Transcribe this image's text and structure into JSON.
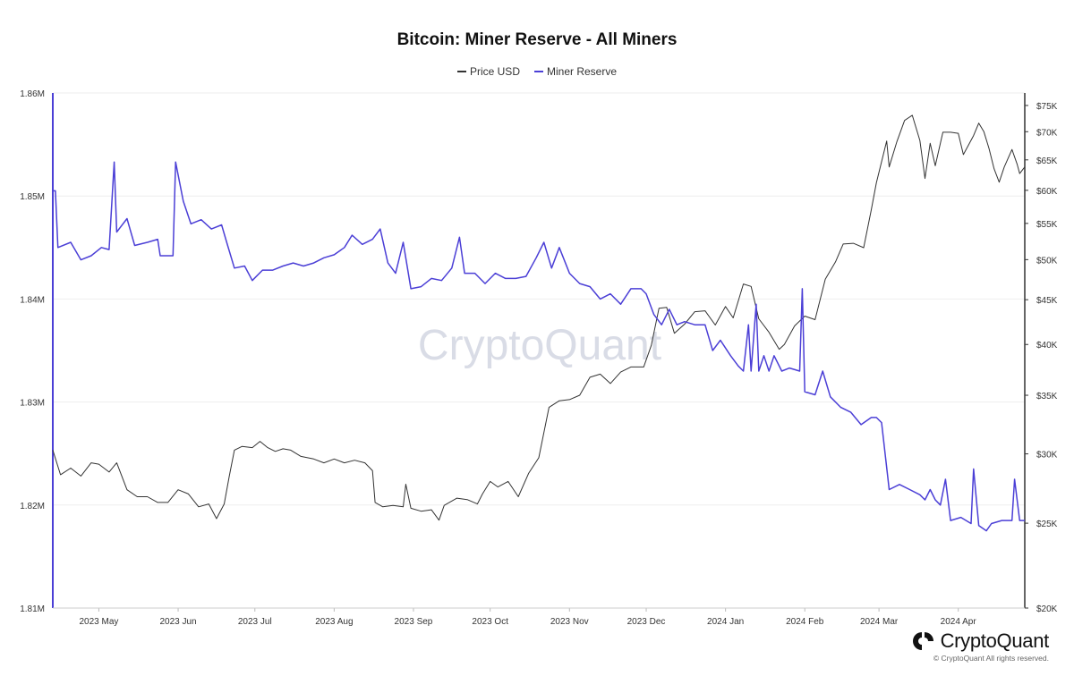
{
  "colors": {
    "price": "#333333",
    "reserve": "#4b3fd6",
    "grid": "#eeeeee"
  },
  "brand": {
    "name": "CryptoQuant",
    "copyright": "© CryptoQuant All rights reserved.",
    "watermark": "CryptoQuant"
  },
  "chart_data": {
    "type": "line",
    "title": "Bitcoin: Miner Reserve - All Miners",
    "legend": {
      "position": "top-center",
      "entries": [
        "Price USD",
        "Miner Reserve"
      ]
    },
    "grid": true,
    "x_start": "2023-04-13",
    "x_end": "2024-04-27",
    "x_ticks": [
      {
        "date": "2023-05-01",
        "label": "2023 May"
      },
      {
        "date": "2023-06-01",
        "label": "2023 Jun"
      },
      {
        "date": "2023-07-01",
        "label": "2023 Jul"
      },
      {
        "date": "2023-08-01",
        "label": "2023 Aug"
      },
      {
        "date": "2023-09-01",
        "label": "2023 Sep"
      },
      {
        "date": "2023-10-01",
        "label": "2023 Oct"
      },
      {
        "date": "2023-11-01",
        "label": "2023 Nov"
      },
      {
        "date": "2023-12-01",
        "label": "2023 Dec"
      },
      {
        "date": "2024-01-01",
        "label": "2024 Jan"
      },
      {
        "date": "2024-02-01",
        "label": "2024 Feb"
      },
      {
        "date": "2024-03-01",
        "label": "2024 Mar"
      },
      {
        "date": "2024-04-01",
        "label": "2024 Apr"
      }
    ],
    "y_left": {
      "range": [
        1.81,
        1.86
      ],
      "ticks": [
        {
          "value": 1.81,
          "label": "1.81M"
        },
        {
          "value": 1.82,
          "label": "1.82M"
        },
        {
          "value": 1.83,
          "label": "1.83M"
        },
        {
          "value": 1.84,
          "label": "1.84M"
        },
        {
          "value": 1.85,
          "label": "1.85M"
        },
        {
          "value": 1.86,
          "label": "1.86M"
        }
      ]
    },
    "y_right": {
      "scale": "log",
      "range": [
        20000,
        77500
      ],
      "ticks": [
        {
          "value": 20000,
          "label": "$20K"
        },
        {
          "value": 25000,
          "label": "$25K"
        },
        {
          "value": 30000,
          "label": "$30K"
        },
        {
          "value": 35000,
          "label": "$35K"
        },
        {
          "value": 40000,
          "label": "$40K"
        },
        {
          "value": 45000,
          "label": "$45K"
        },
        {
          "value": 50000,
          "label": "$50K"
        },
        {
          "value": 55000,
          "label": "$55K"
        },
        {
          "value": 60000,
          "label": "$60K"
        },
        {
          "value": 65000,
          "label": "$65K"
        },
        {
          "value": 70000,
          "label": "$70K"
        },
        {
          "value": 75000,
          "label": "$75K"
        }
      ]
    },
    "series": [
      {
        "name": "Price USD",
        "axis": "right",
        "points": [
          [
            "2023-04-13",
            30300
          ],
          [
            "2023-04-16",
            28400
          ],
          [
            "2023-04-20",
            28900
          ],
          [
            "2023-04-24",
            28300
          ],
          [
            "2023-04-28",
            29300
          ],
          [
            "2023-05-01",
            29200
          ],
          [
            "2023-05-05",
            28600
          ],
          [
            "2023-05-08",
            29300
          ],
          [
            "2023-05-12",
            27300
          ],
          [
            "2023-05-16",
            26800
          ],
          [
            "2023-05-20",
            26800
          ],
          [
            "2023-05-24",
            26400
          ],
          [
            "2023-05-28",
            26400
          ],
          [
            "2023-06-01",
            27300
          ],
          [
            "2023-06-05",
            27000
          ],
          [
            "2023-06-09",
            26100
          ],
          [
            "2023-06-13",
            26300
          ],
          [
            "2023-06-16",
            25300
          ],
          [
            "2023-06-19",
            26300
          ],
          [
            "2023-06-21",
            28300
          ],
          [
            "2023-06-23",
            30300
          ],
          [
            "2023-06-26",
            30600
          ],
          [
            "2023-06-30",
            30500
          ],
          [
            "2023-07-03",
            31000
          ],
          [
            "2023-07-06",
            30500
          ],
          [
            "2023-07-09",
            30200
          ],
          [
            "2023-07-12",
            30400
          ],
          [
            "2023-07-15",
            30300
          ],
          [
            "2023-07-19",
            29800
          ],
          [
            "2023-07-24",
            29600
          ],
          [
            "2023-07-28",
            29300
          ],
          [
            "2023-08-01",
            29600
          ],
          [
            "2023-08-05",
            29300
          ],
          [
            "2023-08-09",
            29500
          ],
          [
            "2023-08-13",
            29300
          ],
          [
            "2023-08-16",
            28700
          ],
          [
            "2023-08-17",
            26400
          ],
          [
            "2023-08-20",
            26100
          ],
          [
            "2023-08-24",
            26200
          ],
          [
            "2023-08-28",
            26100
          ],
          [
            "2023-08-29",
            27700
          ],
          [
            "2023-08-31",
            26000
          ],
          [
            "2023-09-04",
            25800
          ],
          [
            "2023-09-08",
            25900
          ],
          [
            "2023-09-11",
            25200
          ],
          [
            "2023-09-13",
            26200
          ],
          [
            "2023-09-18",
            26700
          ],
          [
            "2023-09-22",
            26600
          ],
          [
            "2023-09-26",
            26300
          ],
          [
            "2023-09-28",
            27000
          ],
          [
            "2023-10-01",
            27900
          ],
          [
            "2023-10-04",
            27500
          ],
          [
            "2023-10-08",
            27900
          ],
          [
            "2023-10-12",
            26800
          ],
          [
            "2023-10-16",
            28500
          ],
          [
            "2023-10-20",
            29700
          ],
          [
            "2023-10-24",
            33900
          ],
          [
            "2023-10-28",
            34500
          ],
          [
            "2023-11-01",
            34600
          ],
          [
            "2023-11-05",
            35000
          ],
          [
            "2023-11-09",
            36700
          ],
          [
            "2023-11-13",
            37000
          ],
          [
            "2023-11-17",
            36100
          ],
          [
            "2023-11-21",
            37200
          ],
          [
            "2023-11-25",
            37700
          ],
          [
            "2023-11-30",
            37700
          ],
          [
            "2023-12-03",
            39900
          ],
          [
            "2023-12-06",
            44000
          ],
          [
            "2023-12-09",
            44100
          ],
          [
            "2023-12-12",
            41200
          ],
          [
            "2023-12-16",
            42200
          ],
          [
            "2023-12-20",
            43600
          ],
          [
            "2023-12-24",
            43700
          ],
          [
            "2023-12-28",
            42100
          ],
          [
            "2024-01-01",
            44200
          ],
          [
            "2024-01-04",
            42900
          ],
          [
            "2024-01-08",
            46900
          ],
          [
            "2024-01-11",
            46600
          ],
          [
            "2024-01-14",
            42800
          ],
          [
            "2024-01-18",
            41300
          ],
          [
            "2024-01-22",
            39500
          ],
          [
            "2024-01-24",
            40000
          ],
          [
            "2024-01-28",
            42000
          ],
          [
            "2024-02-01",
            43100
          ],
          [
            "2024-02-05",
            42700
          ],
          [
            "2024-02-09",
            47500
          ],
          [
            "2024-02-13",
            49700
          ],
          [
            "2024-02-16",
            52100
          ],
          [
            "2024-02-20",
            52200
          ],
          [
            "2024-02-24",
            51600
          ],
          [
            "2024-02-27",
            57000
          ],
          [
            "2024-02-29",
            61200
          ],
          [
            "2024-03-04",
            68300
          ],
          [
            "2024-03-05",
            63800
          ],
          [
            "2024-03-08",
            68200
          ],
          [
            "2024-03-11",
            72100
          ],
          [
            "2024-03-14",
            73100
          ],
          [
            "2024-03-17",
            68400
          ],
          [
            "2024-03-19",
            61900
          ],
          [
            "2024-03-21",
            67900
          ],
          [
            "2024-03-23",
            64000
          ],
          [
            "2024-03-26",
            69900
          ],
          [
            "2024-03-29",
            69900
          ],
          [
            "2024-04-01",
            69700
          ],
          [
            "2024-04-03",
            65900
          ],
          [
            "2024-04-07",
            69300
          ],
          [
            "2024-04-09",
            71600
          ],
          [
            "2024-04-11",
            70000
          ],
          [
            "2024-04-13",
            67000
          ],
          [
            "2024-04-15",
            63500
          ],
          [
            "2024-04-17",
            61300
          ],
          [
            "2024-04-19",
            63800
          ],
          [
            "2024-04-22",
            66800
          ],
          [
            "2024-04-24",
            64300
          ],
          [
            "2024-04-25",
            62700
          ],
          [
            "2024-04-27",
            63800
          ]
        ]
      },
      {
        "name": "Miner Reserve",
        "axis": "left",
        "points": [
          [
            "2023-04-13",
            1.8505
          ],
          [
            "2023-04-14",
            1.8505
          ],
          [
            "2023-04-15",
            1.845
          ],
          [
            "2023-04-20",
            1.8455
          ],
          [
            "2023-04-24",
            1.8438
          ],
          [
            "2023-04-28",
            1.8442
          ],
          [
            "2023-05-02",
            1.845
          ],
          [
            "2023-05-05",
            1.8448
          ],
          [
            "2023-05-07",
            1.8533
          ],
          [
            "2023-05-08",
            1.8465
          ],
          [
            "2023-05-12",
            1.8478
          ],
          [
            "2023-05-15",
            1.8452
          ],
          [
            "2023-05-20",
            1.8455
          ],
          [
            "2023-05-24",
            1.8458
          ],
          [
            "2023-05-25",
            1.8442
          ],
          [
            "2023-05-30",
            1.8442
          ],
          [
            "2023-05-31",
            1.8533
          ],
          [
            "2023-06-03",
            1.8495
          ],
          [
            "2023-06-06",
            1.8473
          ],
          [
            "2023-06-10",
            1.8477
          ],
          [
            "2023-06-14",
            1.8468
          ],
          [
            "2023-06-18",
            1.8472
          ],
          [
            "2023-06-20",
            1.8455
          ],
          [
            "2023-06-23",
            1.843
          ],
          [
            "2023-06-27",
            1.8432
          ],
          [
            "2023-06-30",
            1.8418
          ],
          [
            "2023-07-04",
            1.8428
          ],
          [
            "2023-07-08",
            1.8428
          ],
          [
            "2023-07-12",
            1.8432
          ],
          [
            "2023-07-16",
            1.8435
          ],
          [
            "2023-07-20",
            1.8432
          ],
          [
            "2023-07-24",
            1.8435
          ],
          [
            "2023-07-28",
            1.844
          ],
          [
            "2023-08-01",
            1.8443
          ],
          [
            "2023-08-05",
            1.845
          ],
          [
            "2023-08-08",
            1.8462
          ],
          [
            "2023-08-12",
            1.8453
          ],
          [
            "2023-08-16",
            1.8458
          ],
          [
            "2023-08-19",
            1.8468
          ],
          [
            "2023-08-22",
            1.8435
          ],
          [
            "2023-08-25",
            1.8425
          ],
          [
            "2023-08-28",
            1.8455
          ],
          [
            "2023-08-31",
            1.841
          ],
          [
            "2023-09-04",
            1.8412
          ],
          [
            "2023-09-08",
            1.842
          ],
          [
            "2023-09-12",
            1.8418
          ],
          [
            "2023-09-16",
            1.843
          ],
          [
            "2023-09-19",
            1.846
          ],
          [
            "2023-09-21",
            1.8425
          ],
          [
            "2023-09-25",
            1.8425
          ],
          [
            "2023-09-29",
            1.8415
          ],
          [
            "2023-10-03",
            1.8425
          ],
          [
            "2023-10-07",
            1.842
          ],
          [
            "2023-10-11",
            1.842
          ],
          [
            "2023-10-15",
            1.8422
          ],
          [
            "2023-10-19",
            1.844
          ],
          [
            "2023-10-22",
            1.8455
          ],
          [
            "2023-10-25",
            1.843
          ],
          [
            "2023-10-28",
            1.845
          ],
          [
            "2023-11-01",
            1.8425
          ],
          [
            "2023-11-05",
            1.8415
          ],
          [
            "2023-11-09",
            1.8412
          ],
          [
            "2023-11-13",
            1.84
          ],
          [
            "2023-11-17",
            1.8405
          ],
          [
            "2023-11-21",
            1.8395
          ],
          [
            "2023-11-25",
            1.841
          ],
          [
            "2023-11-29",
            1.841
          ],
          [
            "2023-12-01",
            1.8405
          ],
          [
            "2023-12-04",
            1.8385
          ],
          [
            "2023-12-07",
            1.8375
          ],
          [
            "2023-12-10",
            1.839
          ],
          [
            "2023-12-13",
            1.8375
          ],
          [
            "2023-12-16",
            1.8378
          ],
          [
            "2023-12-20",
            1.8375
          ],
          [
            "2023-12-24",
            1.8375
          ],
          [
            "2023-12-27",
            1.835
          ],
          [
            "2023-12-30",
            1.836
          ],
          [
            "2024-01-03",
            1.8345
          ],
          [
            "2024-01-06",
            1.8335
          ],
          [
            "2024-01-08",
            1.833
          ],
          [
            "2024-01-10",
            1.8375
          ],
          [
            "2024-01-11",
            1.833
          ],
          [
            "2024-01-13",
            1.8395
          ],
          [
            "2024-01-14",
            1.833
          ],
          [
            "2024-01-16",
            1.8345
          ],
          [
            "2024-01-18",
            1.833
          ],
          [
            "2024-01-20",
            1.8345
          ],
          [
            "2024-01-23",
            1.833
          ],
          [
            "2024-01-26",
            1.8333
          ],
          [
            "2024-01-30",
            1.833
          ],
          [
            "2024-01-31",
            1.841
          ],
          [
            "2024-02-01",
            1.831
          ],
          [
            "2024-02-05",
            1.8307
          ],
          [
            "2024-02-08",
            1.833
          ],
          [
            "2024-02-11",
            1.8305
          ],
          [
            "2024-02-15",
            1.8295
          ],
          [
            "2024-02-19",
            1.829
          ],
          [
            "2024-02-23",
            1.8278
          ],
          [
            "2024-02-27",
            1.8285
          ],
          [
            "2024-02-29",
            1.8285
          ],
          [
            "2024-03-02",
            1.828
          ],
          [
            "2024-03-05",
            1.8215
          ],
          [
            "2024-03-09",
            1.822
          ],
          [
            "2024-03-13",
            1.8215
          ],
          [
            "2024-03-17",
            1.821
          ],
          [
            "2024-03-19",
            1.8205
          ],
          [
            "2024-03-21",
            1.8215
          ],
          [
            "2024-03-23",
            1.8205
          ],
          [
            "2024-03-25",
            1.82
          ],
          [
            "2024-03-27",
            1.8225
          ],
          [
            "2024-03-29",
            1.8185
          ],
          [
            "2024-04-02",
            1.8188
          ],
          [
            "2024-04-06",
            1.8182
          ],
          [
            "2024-04-07",
            1.8235
          ],
          [
            "2024-04-09",
            1.818
          ],
          [
            "2024-04-12",
            1.8175
          ],
          [
            "2024-04-14",
            1.8182
          ],
          [
            "2024-04-18",
            1.8185
          ],
          [
            "2024-04-22",
            1.8185
          ],
          [
            "2024-04-23",
            1.8225
          ],
          [
            "2024-04-25",
            1.8185
          ],
          [
            "2024-04-27",
            1.8185
          ]
        ]
      }
    ]
  }
}
